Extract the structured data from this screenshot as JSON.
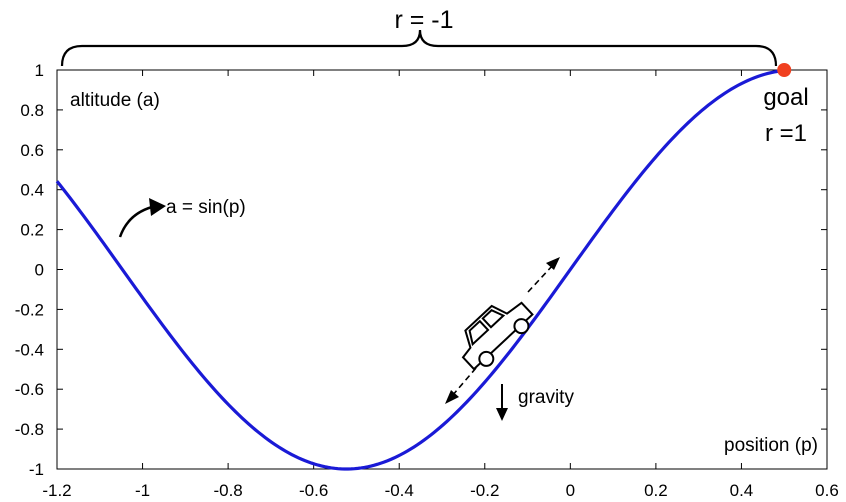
{
  "chart_data": {
    "type": "line",
    "title": "",
    "xlabel": "position (p)",
    "ylabel": "altitude (a)",
    "xlim": [
      -1.2,
      0.6
    ],
    "ylim": [
      -1,
      1
    ],
    "xticks": [
      "-1.2",
      "-1",
      "-0.8",
      "-0.6",
      "-0.4",
      "-0.2",
      "0",
      "0.2",
      "0.4",
      "0.6"
    ],
    "yticks": [
      "1",
      "0.8",
      "0.6",
      "0.4",
      "0.2",
      "0",
      "-0.2",
      "-0.4",
      "-0.6",
      "-0.8",
      "-1"
    ],
    "grid": false,
    "series": [
      {
        "function": "a = sin(p)",
        "x": [
          -1.2,
          -1.1,
          -1.0,
          -0.9,
          -0.8,
          -0.7,
          -0.6,
          -0.5236,
          -0.5,
          -0.4,
          -0.3,
          -0.2,
          -0.1,
          0.0,
          0.1,
          0.2,
          0.3,
          0.4,
          0.5
        ],
        "y": [
          0.43,
          0.2,
          -0.04,
          -0.28,
          -0.5,
          -0.7,
          -0.87,
          -1.0,
          -0.99,
          -0.93,
          -0.75,
          -0.49,
          -0.18,
          0.13,
          0.43,
          0.67,
          0.87,
          0.98,
          1.0
        ]
      }
    ],
    "goal_point": {
      "x": 0.5,
      "y": 1.0,
      "color": "#f04020"
    },
    "line_color": "#1a1ad6",
    "annotations": {
      "curve_label": "a = sin(p)",
      "goal_label": "goal",
      "goal_reward": "r =1",
      "step_reward": "r = -1",
      "gravity_label": "gravity"
    }
  }
}
